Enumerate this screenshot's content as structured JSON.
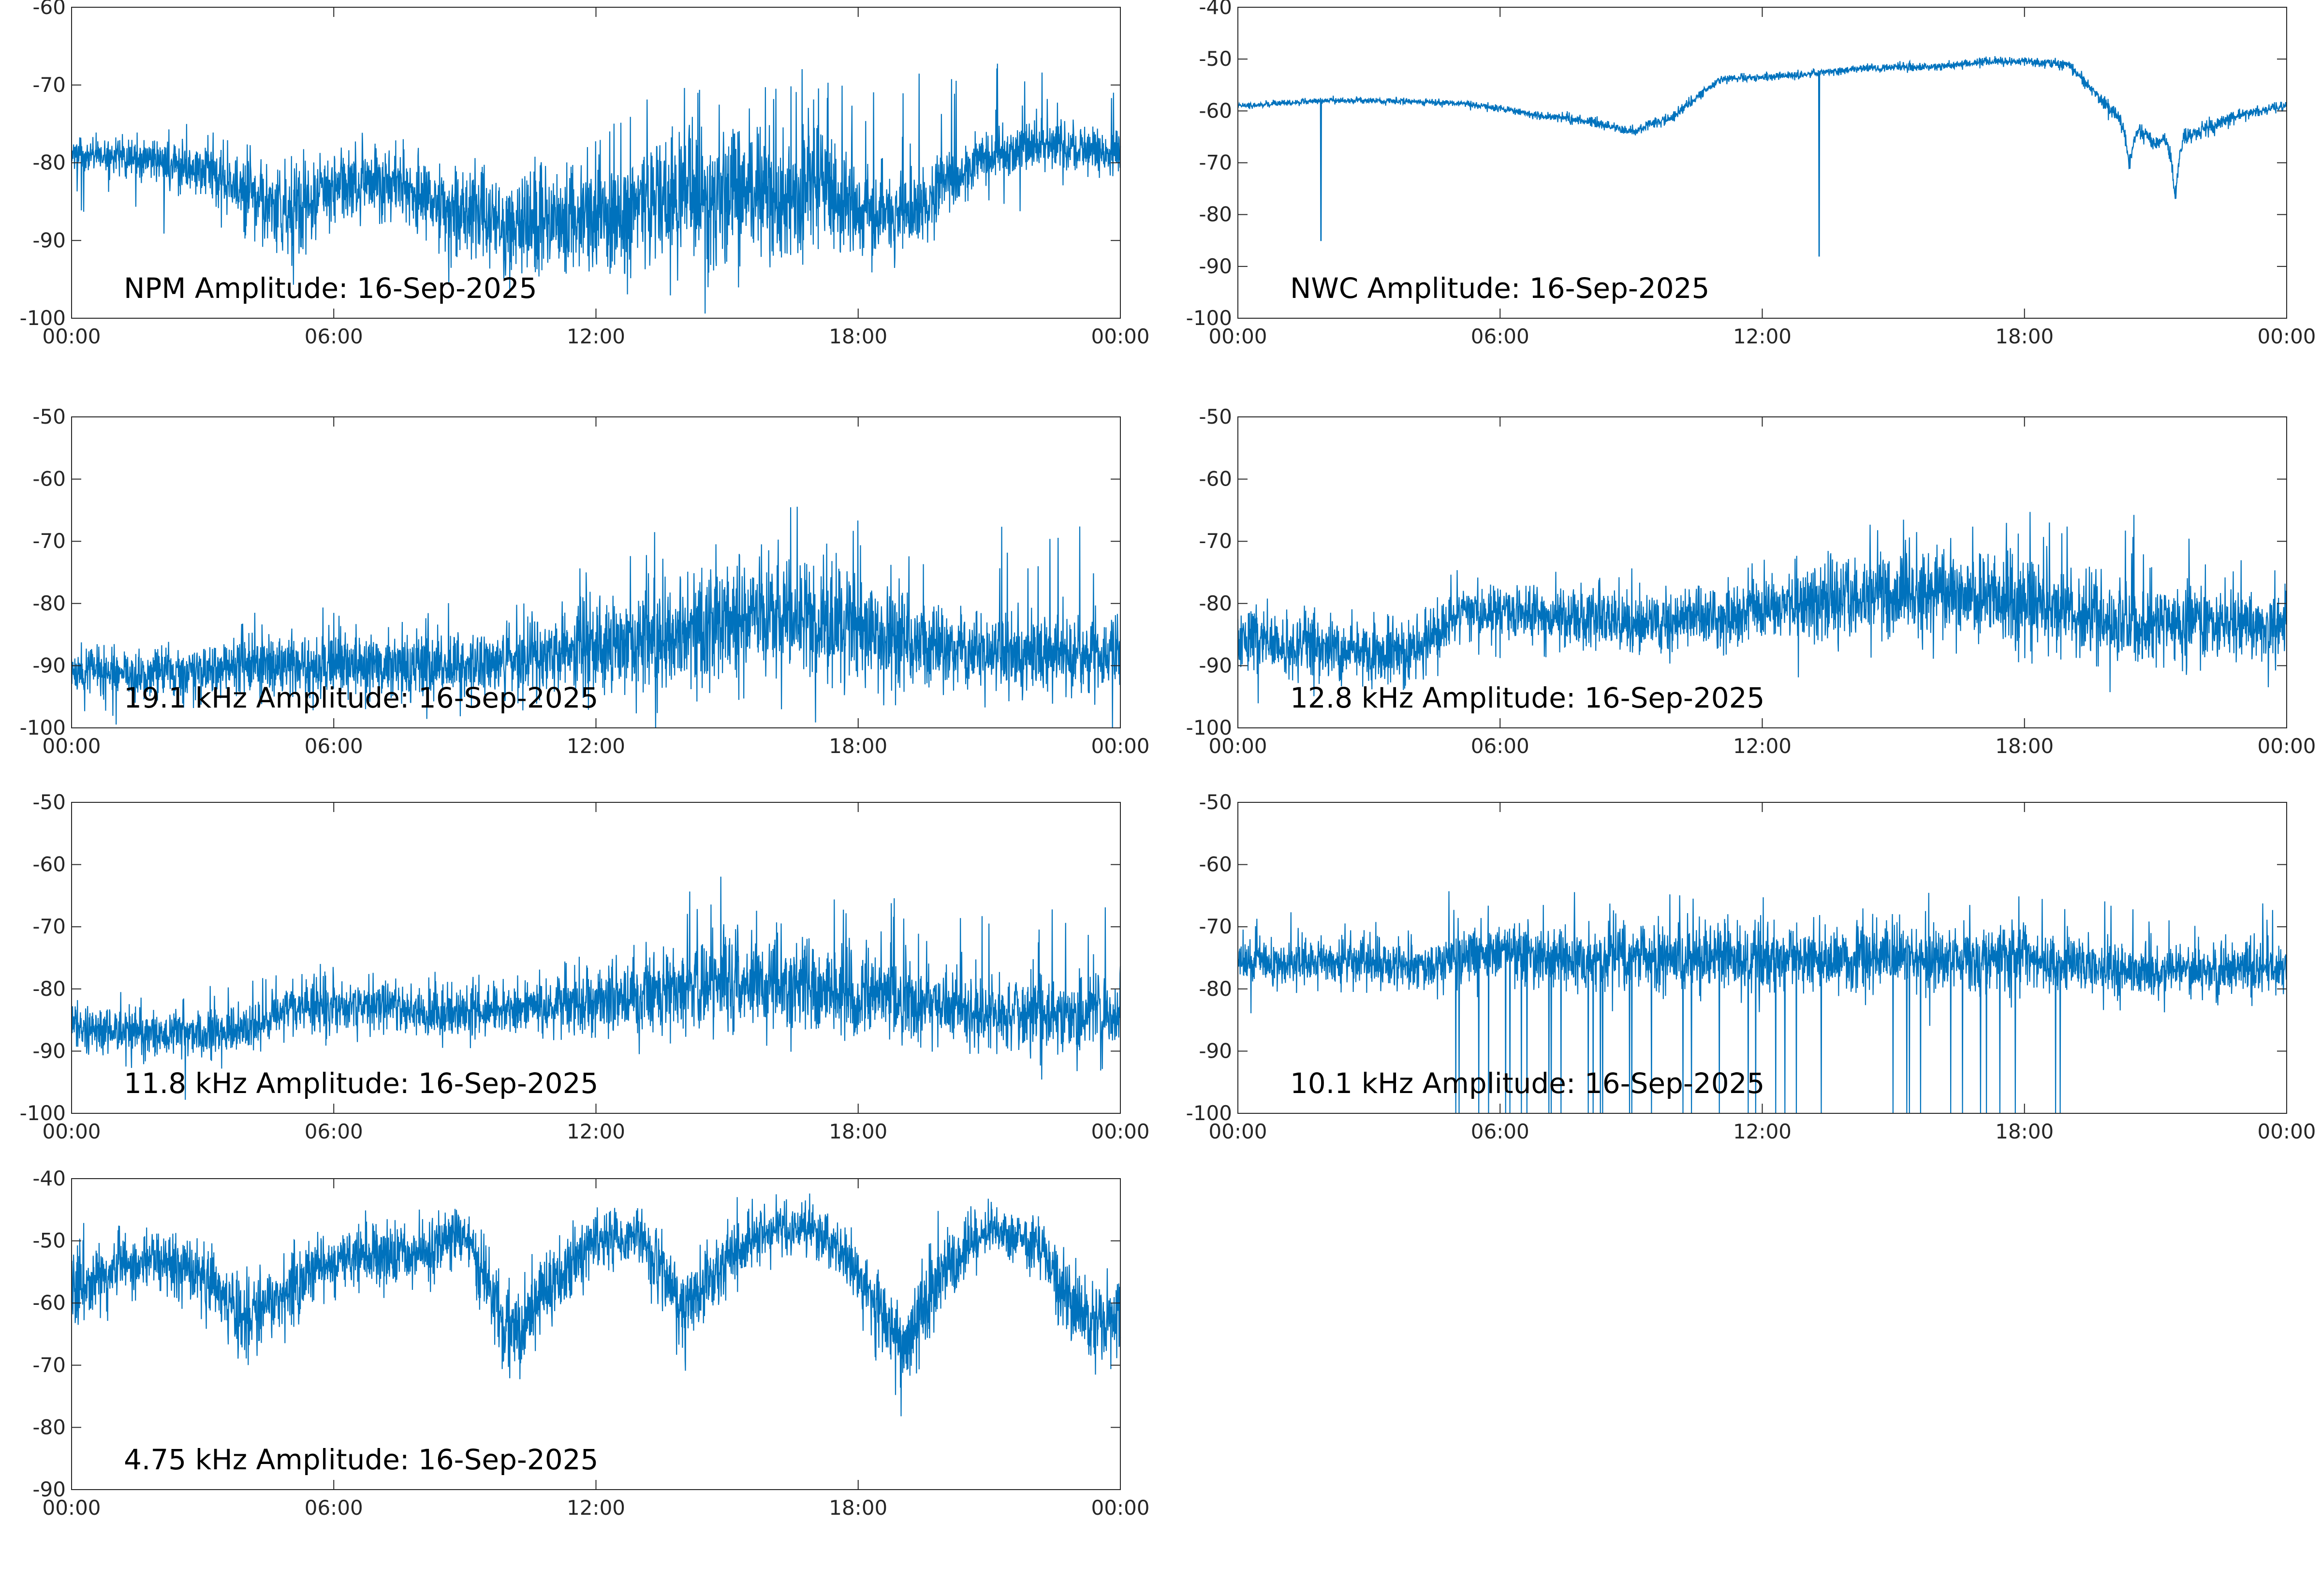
{
  "chart_data": [
    {
      "type": "line",
      "title": "NPM Amplitude: 16-Sep-2025",
      "ylim": [
        -100,
        -60
      ],
      "yticks": [
        -100,
        -90,
        -80,
        -70,
        -60
      ],
      "xticks": [
        "00:00",
        "06:00",
        "12:00",
        "18:00",
        "00:00"
      ],
      "xlim_hours": [
        0,
        24
      ],
      "color": "#0072BD",
      "hourly_mean": [
        -79,
        -79,
        -80,
        -81,
        -83,
        -87,
        -83,
        -82,
        -84,
        -86,
        -88,
        -87,
        -87,
        -86,
        -85,
        -84,
        -84,
        -82,
        -87,
        -87,
        -83,
        -79,
        -78,
        -78,
        -79
      ],
      "hourly_noise": [
        1.2,
        1.2,
        1.4,
        1.8,
        2.5,
        3,
        2.5,
        2.5,
        2.5,
        3,
        3.5,
        3.5,
        3.5,
        4,
        4.5,
        4.5,
        4.5,
        4.5,
        3,
        2.5,
        2,
        1.5,
        1.5,
        1.5,
        1.5
      ],
      "spike_max": [
        -77,
        -77,
        -77,
        -79,
        -80,
        -80,
        -77,
        -76,
        -80,
        -80,
        -80,
        -80,
        -77,
        -72,
        -68,
        -68,
        -68,
        -67,
        -68,
        -68,
        -68,
        -67,
        -67,
        -68,
        -70
      ],
      "dips": []
    },
    {
      "type": "line",
      "title": "NWC Amplitude: 16-Sep-2025",
      "ylim": [
        -100,
        -40
      ],
      "yticks": [
        -100,
        -90,
        -80,
        -70,
        -60,
        -50,
        -40
      ],
      "xticks": [
        "00:00",
        "06:00",
        "12:00",
        "18:00",
        "00:00"
      ],
      "xlim_hours": [
        0,
        24
      ],
      "color": "#0072BD",
      "hourly_mean": [
        -59,
        -58.5,
        -58,
        -58,
        -58.2,
        -58.5,
        -59.5,
        -61,
        -62,
        -64,
        -61,
        -54,
        -53.5,
        -53,
        -52,
        -51.5,
        -51.5,
        -50.5,
        -50.5,
        -51,
        -60,
        -66,
        -64,
        -60.5,
        -59
      ],
      "hourly_noise": [
        0.3,
        0.3,
        0.3,
        0.3,
        0.3,
        0.3,
        0.4,
        0.4,
        0.5,
        0.5,
        0.5,
        0.4,
        0.4,
        0.4,
        0.4,
        0.4,
        0.4,
        0.4,
        0.4,
        0.5,
        0.8,
        0.8,
        0.8,
        0.6,
        0.5
      ],
      "spike_max": null,
      "dips": [
        {
          "hour": 1.9,
          "value": -85
        },
        {
          "hour": 13.3,
          "value": -88
        },
        {
          "hour": 20.4,
          "value": -71
        },
        {
          "hour": 21.45,
          "value": -77
        }
      ]
    },
    {
      "type": "line",
      "title": "19.1 kHz Amplitude: 16-Sep-2025",
      "ylim": [
        -100,
        -50
      ],
      "yticks": [
        -100,
        -90,
        -80,
        -70,
        -60,
        -50
      ],
      "xticks": [
        "00:00",
        "06:00",
        "12:00",
        "18:00",
        "00:00"
      ],
      "xlim_hours": [
        0,
        24
      ],
      "color": "#0072BD",
      "hourly_mean": [
        -91,
        -91,
        -91,
        -91,
        -90,
        -90,
        -90,
        -90,
        -90,
        -90,
        -89,
        -88,
        -87,
        -86,
        -85,
        -83,
        -83,
        -83,
        -85,
        -86,
        -87,
        -88,
        -88,
        -88,
        -88
      ],
      "hourly_noise": [
        2,
        2,
        2,
        2,
        2.5,
        2.5,
        2.5,
        2.5,
        2.5,
        2.5,
        3,
        3,
        3.5,
        4,
        4.5,
        5,
        5,
        5,
        4.5,
        4,
        3.5,
        3,
        3,
        3,
        3
      ],
      "spike_max": [
        -82,
        -87,
        -87,
        -86,
        -80,
        -80,
        -80,
        -80,
        -80,
        -78,
        -78,
        -76,
        -72,
        -70,
        -65,
        -64,
        -64,
        -64,
        -64,
        -66,
        -66,
        -67,
        -67,
        -67,
        -67
      ],
      "dips": []
    },
    {
      "type": "line",
      "title": "12.8 kHz Amplitude: 16-Sep-2025",
      "ylim": [
        -100,
        -50
      ],
      "yticks": [
        -100,
        -90,
        -80,
        -70,
        -60,
        -50
      ],
      "xticks": [
        "00:00",
        "06:00",
        "12:00",
        "18:00",
        "00:00"
      ],
      "xlim_hours": [
        0,
        24
      ],
      "color": "#0072BD",
      "hourly_mean": [
        -86,
        -87,
        -87,
        -88,
        -88,
        -82,
        -81,
        -82,
        -82,
        -83,
        -83,
        -82,
        -81,
        -80,
        -79,
        -79,
        -79,
        -79,
        -80,
        -81,
        -83,
        -83,
        -83,
        -83,
        -84
      ],
      "hourly_noise": [
        2.5,
        2.5,
        2.5,
        2.5,
        2.5,
        2,
        2,
        2,
        2.5,
        2.5,
        2.5,
        2.5,
        2.5,
        3,
        3.5,
        3.5,
        3.5,
        3.5,
        3.5,
        3,
        3,
        3,
        3,
        3,
        3
      ],
      "spike_max": [
        -81,
        -81,
        -81,
        -81,
        -81,
        -74,
        -76,
        -77,
        -77,
        -77,
        -77,
        -75,
        -73,
        -71,
        -63,
        -65,
        -65,
        -65,
        -65,
        -65,
        -65,
        -65,
        -65,
        -66,
        -66
      ],
      "dips": []
    },
    {
      "type": "line",
      "title": "11.8 kHz Amplitude: 16-Sep-2025",
      "ylim": [
        -100,
        -50
      ],
      "yticks": [
        -100,
        -90,
        -80,
        -70,
        -60,
        -50
      ],
      "xticks": [
        "00:00",
        "06:00",
        "12:00",
        "18:00",
        "00:00"
      ],
      "xlim_hours": [
        0,
        24
      ],
      "color": "#0072BD",
      "hourly_mean": [
        -86,
        -87,
        -87,
        -87,
        -87,
        -83,
        -83,
        -83,
        -84,
        -84,
        -83,
        -83,
        -82,
        -81,
        -80,
        -79,
        -79,
        -80,
        -81,
        -82,
        -83,
        -84,
        -84,
        -84,
        -84
      ],
      "hourly_noise": [
        2,
        2,
        2,
        2,
        2,
        2,
        2,
        2,
        2,
        2,
        2,
        2.5,
        2.5,
        3,
        3.5,
        3.5,
        3.5,
        3.5,
        3,
        3,
        3,
        3,
        3,
        3,
        3
      ],
      "spike_max": [
        -77,
        -79,
        -79,
        -79,
        -79,
        -75,
        -76,
        -77,
        -78,
        -78,
        -77,
        -75,
        -73,
        -70,
        -64,
        -60,
        -64,
        -65,
        -65,
        -65,
        -66,
        -66,
        -66,
        -66,
        -67
      ],
      "dips": []
    },
    {
      "type": "line",
      "title": "10.1 kHz Amplitude: 16-Sep-2025",
      "ylim": [
        -100,
        -50
      ],
      "yticks": [
        -100,
        -90,
        -80,
        -70,
        -60,
        -50
      ],
      "xticks": [
        "00:00",
        "06:00",
        "12:00",
        "18:00",
        "00:00"
      ],
      "xlim_hours": [
        0,
        24
      ],
      "color": "#0072BD",
      "hourly_mean": [
        -76,
        -76,
        -76,
        -76,
        -76,
        -75,
        -74,
        -75,
        -75,
        -75,
        -75,
        -75,
        -75,
        -75,
        -75,
        -75,
        -75,
        -75,
        -75,
        -76,
        -77,
        -77,
        -77,
        -77,
        -77
      ],
      "hourly_noise": [
        1.8,
        1.8,
        1.8,
        1.8,
        1.8,
        2.5,
        2.5,
        2.5,
        2.5,
        2.5,
        2.5,
        2.5,
        2.5,
        2.5,
        2.5,
        2.5,
        2.5,
        2.5,
        2.5,
        2,
        2,
        2,
        2,
        2,
        2
      ],
      "spike_max": [
        -70,
        -67,
        -69,
        -69,
        -70,
        -62,
        -61,
        -64,
        -64,
        -64,
        -64,
        -64,
        -64,
        -64,
        -64,
        -64,
        -64,
        -64,
        -62,
        -64,
        -65,
        -66,
        -66,
        -66,
        -66
      ],
      "dropouts": {
        "from_hour": 4.6,
        "to_hour": 19.5,
        "value": -100
      },
      "dips": []
    },
    {
      "type": "line",
      "title": "4.75 kHz Amplitude: 16-Sep-2025",
      "ylim": [
        -90,
        -40
      ],
      "yticks": [
        -90,
        -80,
        -70,
        -60,
        -50,
        -40
      ],
      "xticks": [
        "00:00",
        "06:00",
        "12:00",
        "18:00",
        "00:00"
      ],
      "xlim_hours": [
        0,
        24
      ],
      "color": "#0072BD",
      "hourly_mean": [
        -58,
        -55,
        -53,
        -56,
        -62,
        -58,
        -53,
        -52,
        -52,
        -48,
        -66,
        -57,
        -50,
        -49,
        -61,
        -53,
        -48,
        -48,
        -55,
        -68,
        -54,
        -48,
        -50,
        -61,
        -63
      ],
      "hourly_noise": [
        3,
        2.5,
        2,
        3,
        3.5,
        3,
        2.5,
        2.5,
        2.5,
        2.5,
        4,
        3,
        2.5,
        2.5,
        3.5,
        2.5,
        2,
        2,
        3,
        4,
        3,
        2,
        2.5,
        3.5,
        3.5
      ],
      "spike_max": null,
      "dips": []
    }
  ]
}
